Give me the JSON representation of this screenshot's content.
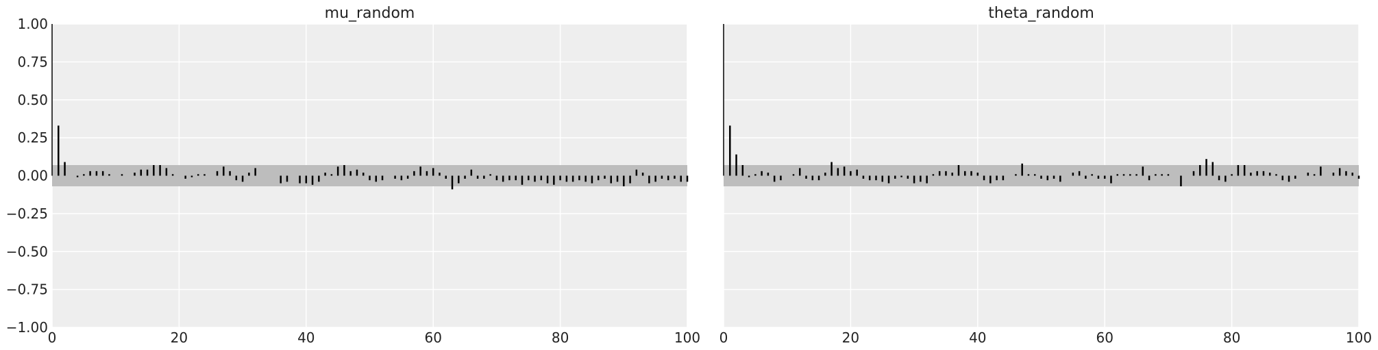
{
  "chart_data": [
    {
      "type": "bar",
      "subtype": "autocorrelation",
      "title": "mu_random",
      "xlabel": "",
      "ylabel": "",
      "xlim": [
        0,
        100
      ],
      "ylim": [
        -1.0,
        1.0
      ],
      "xticks": [
        0,
        20,
        40,
        60,
        80,
        100
      ],
      "yticks": [
        1.0,
        0.75,
        0.5,
        0.25,
        0.0,
        -0.25,
        -0.5,
        -0.75,
        -1.0
      ],
      "yticklabels": [
        "1.00",
        "0.75",
        "0.50",
        "0.25",
        "0.00",
        "−0.25",
        "−0.50",
        "−0.75",
        "−1.00"
      ],
      "grid": true,
      "confidence_band": [
        -0.07,
        0.07
      ],
      "colors": {
        "background": "#eeeeee",
        "band": "#bdbdbd",
        "bar": "#000000",
        "grid": "#ffffff"
      },
      "lags": [
        0,
        1,
        2,
        3,
        4,
        5,
        6,
        7,
        8,
        9,
        10,
        11,
        12,
        13,
        14,
        15,
        16,
        17,
        18,
        19,
        20,
        21,
        22,
        23,
        24,
        25,
        26,
        27,
        28,
        29,
        30,
        31,
        32,
        33,
        34,
        35,
        36,
        37,
        38,
        39,
        40,
        41,
        42,
        43,
        44,
        45,
        46,
        47,
        48,
        49,
        50,
        51,
        52,
        53,
        54,
        55,
        56,
        57,
        58,
        59,
        60,
        61,
        62,
        63,
        64,
        65,
        66,
        67,
        68,
        69,
        70,
        71,
        72,
        73,
        74,
        75,
        76,
        77,
        78,
        79,
        80,
        81,
        82,
        83,
        84,
        85,
        86,
        87,
        88,
        89,
        90,
        91,
        92,
        93,
        94,
        95,
        96,
        97,
        98,
        99,
        100
      ],
      "values": [
        1.0,
        0.33,
        0.09,
        0.0,
        -0.01,
        0.01,
        0.03,
        0.03,
        0.03,
        0.01,
        0.0,
        0.01,
        0.0,
        0.02,
        0.04,
        0.04,
        0.07,
        0.07,
        0.05,
        0.01,
        0.0,
        -0.02,
        -0.01,
        0.01,
        0.01,
        0.0,
        0.03,
        0.06,
        0.03,
        -0.03,
        -0.04,
        0.02,
        0.05,
        0.0,
        0.0,
        0.0,
        -0.05,
        -0.04,
        0.0,
        -0.05,
        -0.05,
        -0.06,
        -0.04,
        0.02,
        0.01,
        0.06,
        0.07,
        0.03,
        0.04,
        0.02,
        -0.03,
        -0.04,
        -0.03,
        0.0,
        -0.02,
        -0.03,
        -0.02,
        0.03,
        0.06,
        0.03,
        0.05,
        0.02,
        -0.02,
        -0.09,
        -0.05,
        -0.02,
        0.04,
        -0.02,
        -0.02,
        0.01,
        -0.03,
        -0.04,
        -0.03,
        -0.03,
        -0.06,
        -0.03,
        -0.04,
        -0.03,
        -0.05,
        -0.06,
        -0.03,
        -0.04,
        -0.04,
        -0.03,
        -0.04,
        -0.05,
        -0.03,
        -0.02,
        -0.05,
        -0.04,
        -0.07,
        -0.05,
        0.04,
        0.02,
        -0.05,
        -0.04,
        -0.02,
        -0.03,
        -0.02,
        -0.04,
        -0.04
      ]
    },
    {
      "type": "bar",
      "subtype": "autocorrelation",
      "title": "theta_random",
      "xlabel": "",
      "ylabel": "",
      "xlim": [
        0,
        100
      ],
      "ylim": [
        -1.0,
        1.0
      ],
      "xticks": [
        0,
        20,
        40,
        60,
        80,
        100
      ],
      "grid": true,
      "confidence_band": [
        -0.07,
        0.07
      ],
      "colors": {
        "background": "#eeeeee",
        "band": "#bdbdbd",
        "bar": "#000000",
        "grid": "#ffffff"
      },
      "lags": [
        0,
        1,
        2,
        3,
        4,
        5,
        6,
        7,
        8,
        9,
        10,
        11,
        12,
        13,
        14,
        15,
        16,
        17,
        18,
        19,
        20,
        21,
        22,
        23,
        24,
        25,
        26,
        27,
        28,
        29,
        30,
        31,
        32,
        33,
        34,
        35,
        36,
        37,
        38,
        39,
        40,
        41,
        42,
        43,
        44,
        45,
        46,
        47,
        48,
        49,
        50,
        51,
        52,
        53,
        54,
        55,
        56,
        57,
        58,
        59,
        60,
        61,
        62,
        63,
        64,
        65,
        66,
        67,
        68,
        69,
        70,
        71,
        72,
        73,
        74,
        75,
        76,
        77,
        78,
        79,
        80,
        81,
        82,
        83,
        84,
        85,
        86,
        87,
        88,
        89,
        90,
        91,
        92,
        93,
        94,
        95,
        96,
        97,
        98,
        99,
        100
      ],
      "values": [
        1.0,
        0.33,
        0.14,
        0.07,
        -0.01,
        0.01,
        0.03,
        0.02,
        -0.04,
        -0.03,
        0.0,
        0.01,
        0.05,
        -0.02,
        -0.03,
        -0.03,
        0.02,
        0.09,
        0.05,
        0.06,
        0.03,
        0.04,
        -0.02,
        -0.03,
        -0.03,
        -0.04,
        -0.05,
        -0.02,
        -0.01,
        -0.02,
        -0.05,
        -0.04,
        -0.05,
        0.01,
        0.03,
        0.03,
        0.02,
        0.07,
        0.03,
        0.03,
        0.02,
        -0.03,
        -0.05,
        -0.03,
        -0.03,
        0.0,
        0.01,
        0.08,
        0.01,
        0.01,
        -0.02,
        -0.03,
        -0.02,
        -0.04,
        0.0,
        0.02,
        0.03,
        -0.02,
        0.01,
        -0.02,
        -0.02,
        -0.05,
        0.01,
        0.01,
        0.01,
        0.01,
        0.06,
        -0.03,
        0.01,
        0.01,
        0.01,
        0.0,
        -0.07,
        0.0,
        0.03,
        0.07,
        0.11,
        0.09,
        -0.03,
        -0.04,
        0.01,
        0.07,
        0.07,
        0.02,
        0.03,
        0.03,
        0.02,
        0.01,
        -0.03,
        -0.04,
        -0.02,
        0.0,
        0.02,
        0.01,
        0.06,
        0.0,
        0.02,
        0.05,
        0.03,
        0.02,
        -0.02
      ]
    }
  ]
}
